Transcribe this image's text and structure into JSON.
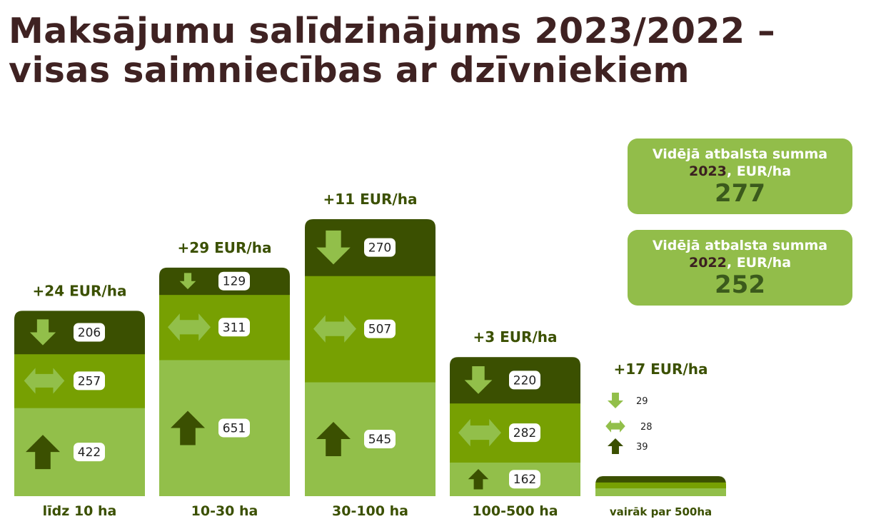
{
  "title": {
    "line1": "Maksājumu salīdzinājums 2023/2022 –",
    "line2": "visas saimniecības ar dzīvniekiem"
  },
  "cards": [
    {
      "label_line1": "Vidējā atbalsta summa",
      "year": "2023",
      "label_suffix": ", EUR/ha",
      "value": "277"
    },
    {
      "label_line1": "Vidējā atbalsta summa",
      "year": "2022",
      "label_suffix": ", EUR/ha",
      "value": "252"
    }
  ],
  "colors": {
    "dark": "#3b5001",
    "medium": "#77a002",
    "light": "#92bf4a",
    "title": "#3f2222",
    "delta_text": "#3b5001"
  },
  "icons": {
    "down": "arrow-down-icon",
    "same": "arrow-left-right-icon",
    "up": "arrow-up-icon"
  },
  "chart_data": {
    "type": "bar",
    "stacked": true,
    "categories": [
      "līdz 10 ha",
      "10-30 ha",
      "30-100 ha",
      "100-500 ha",
      "vairāk par 500ha"
    ],
    "series": [
      {
        "key": "up",
        "values": [
          422,
          651,
          545,
          162,
          39
        ]
      },
      {
        "key": "same",
        "values": [
          257,
          311,
          507,
          282,
          28
        ]
      },
      {
        "key": "down",
        "values": [
          206,
          129,
          270,
          220,
          29
        ]
      }
    ],
    "deltas": [
      "+24 EUR/ha",
      "+29 EUR/ha",
      "+11 EUR/ha",
      "+3 EUR/ha",
      "+17 EUR/ha"
    ]
  }
}
